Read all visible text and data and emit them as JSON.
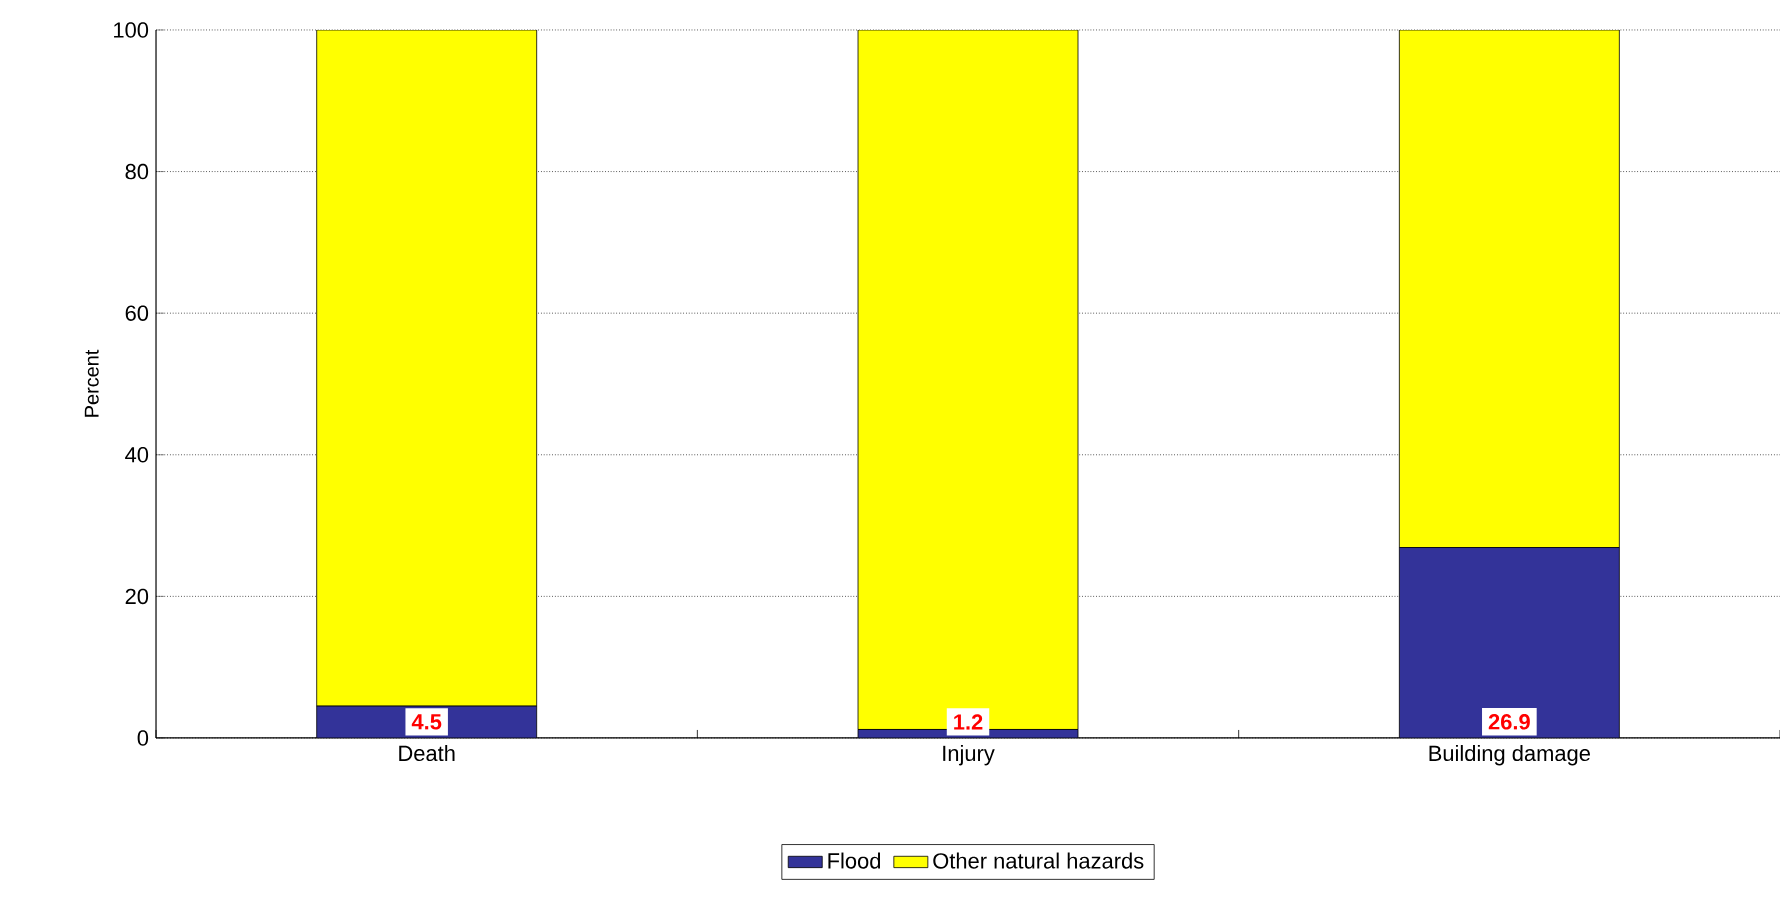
{
  "chart_data": {
    "type": "bar",
    "stacked": true,
    "ylabel": "Percent",
    "categories": [
      "Death",
      "Injury",
      "Building damage"
    ],
    "series": [
      {
        "name": "Flood",
        "color": "#333399",
        "values": [
          4.5,
          1.2,
          26.9
        ],
        "value_labels": [
          "4.5",
          "1.2",
          "26.9"
        ]
      },
      {
        "name": "Other natural hazards",
        "color": "#ffff00",
        "values": [
          95.5,
          98.8,
          73.1
        ]
      }
    ],
    "ylim": [
      0,
      100
    ],
    "yticks": [
      0,
      20,
      40,
      60,
      80,
      100
    ],
    "grid": "y",
    "legend": "bottom"
  }
}
